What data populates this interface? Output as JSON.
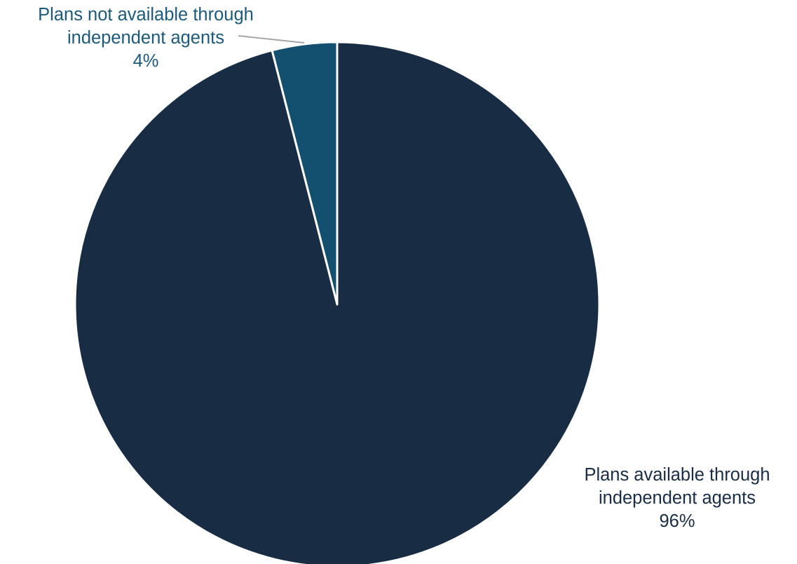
{
  "chart_data": {
    "type": "pie",
    "title": "",
    "start_angle_deg": 0,
    "direction": "counterclockwise",
    "slices": [
      {
        "label": "Plans not available through independent agents",
        "label_lines": [
          "Plans not available through",
          "independent agents"
        ],
        "value": 4,
        "value_label": "4%",
        "color": "#13506f",
        "label_color": "#1d5a7a"
      },
      {
        "label": "Plans available through independent agents",
        "label_lines": [
          "Plans available through",
          "independent agents"
        ],
        "value": 96,
        "value_label": "96%",
        "color": "#182c44",
        "label_color": "#1b2d44"
      }
    ],
    "slice_border_color": "#ffffff",
    "leader_line_color": "#a6a6a6"
  }
}
